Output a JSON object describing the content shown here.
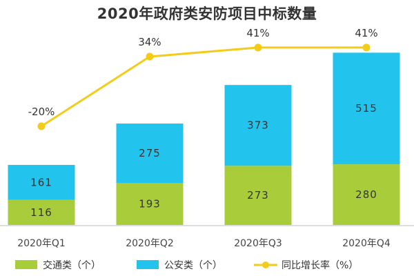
{
  "chart_data": {
    "type": "bar",
    "title": "2020年政府类安防项目中标数量",
    "categories": [
      "2020年Q1",
      "2020年Q2",
      "2020年Q3",
      "2020年Q4"
    ],
    "stacked": true,
    "series": [
      {
        "name": "交通类（个）",
        "kind": "bar",
        "color": "#a9cd3a",
        "values": [
          116,
          193,
          273,
          280
        ]
      },
      {
        "name": "公安类（个）",
        "kind": "bar",
        "color": "#22c3ec",
        "values": [
          161,
          275,
          373,
          515
        ]
      },
      {
        "name": "同比增长率（%）",
        "kind": "line",
        "color": "#f5cb1a",
        "values": [
          -20,
          34,
          41,
          41
        ],
        "labels": [
          "-20%",
          "34%",
          "41%",
          "41%"
        ]
      }
    ],
    "legend_position": "bottom",
    "grid": false
  }
}
